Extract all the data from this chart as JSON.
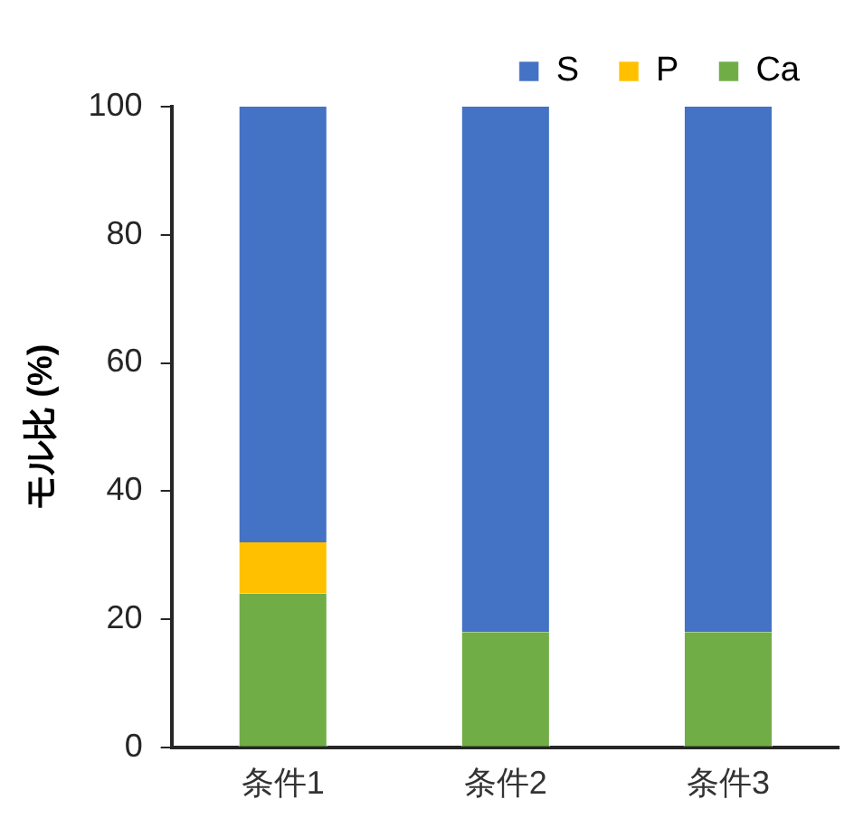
{
  "chart_data": {
    "type": "bar",
    "stacked": true,
    "ylabel": "モル比 (%)",
    "categories": [
      "条件1",
      "条件2",
      "条件3"
    ],
    "series": [
      {
        "name": "Ca",
        "color": "#70ad47",
        "values": [
          24,
          18,
          18
        ]
      },
      {
        "name": "P",
        "color": "#ffc000",
        "values": [
          8,
          0,
          0
        ]
      },
      {
        "name": "S",
        "color": "#4472c4",
        "values": [
          68,
          82,
          82
        ]
      }
    ],
    "ylim": [
      0,
      100
    ],
    "yticks": [
      0,
      20,
      40,
      60,
      80,
      100
    ],
    "grid": false,
    "legend": "top right"
  }
}
